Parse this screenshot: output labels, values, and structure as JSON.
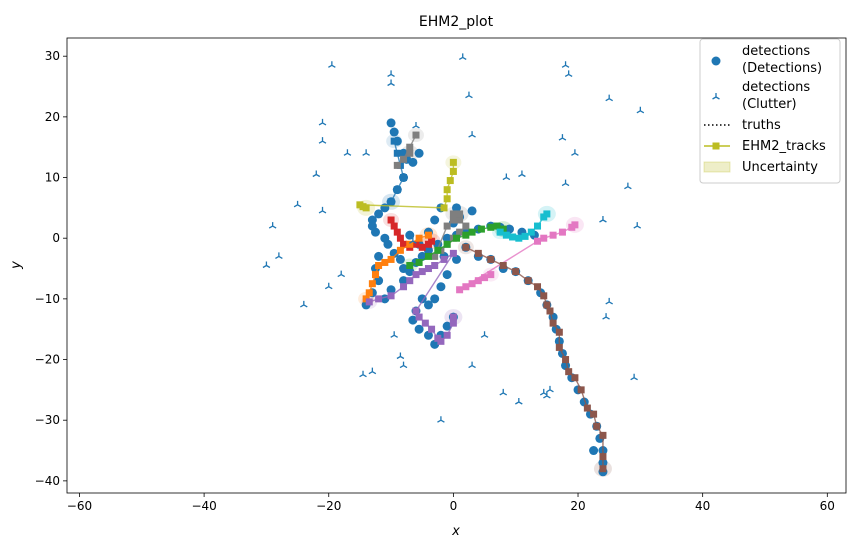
{
  "chart_data": {
    "type": "scatter",
    "title": "EHM2_plot",
    "xlabel": "x",
    "ylabel": "y",
    "xlim": [
      -62,
      63
    ],
    "ylim": [
      -42,
      33
    ],
    "x_ticks": [
      -60,
      -40,
      -20,
      0,
      20,
      40,
      60
    ],
    "y_ticks": [
      -40,
      -30,
      -20,
      -10,
      0,
      10,
      20,
      30
    ],
    "grid": false,
    "legend_position": "top-right",
    "legend": [
      {
        "label": "detections\n(Detections)",
        "marker": "circle",
        "color": "#1f77b4"
      },
      {
        "label": "detections\n(Clutter)",
        "marker": "tri",
        "color": "#1f77b4"
      },
      {
        "label": "truths",
        "marker": "dotted-line",
        "color": "#000000"
      },
      {
        "label": "EHM2_tracks",
        "marker": "square-line",
        "color": "#bcbd22"
      },
      {
        "label": "Uncertainty",
        "marker": "patch",
        "color": "#bcbd22"
      }
    ],
    "detections": [
      [
        -10,
        19
      ],
      [
        -9.5,
        17.5
      ],
      [
        -9,
        16
      ],
      [
        -8,
        14
      ],
      [
        -7.5,
        13
      ],
      [
        -6.5,
        12.5
      ],
      [
        -5.5,
        14
      ],
      [
        -8,
        10
      ],
      [
        -9,
        8
      ],
      [
        -10,
        6
      ],
      [
        -11,
        5
      ],
      [
        -12,
        4
      ],
      [
        -13,
        3
      ],
      [
        -13,
        2
      ],
      [
        -12.5,
        1
      ],
      [
        -11,
        0
      ],
      [
        -10.5,
        -1
      ],
      [
        -9.5,
        -2.5
      ],
      [
        -8.5,
        -3.5
      ],
      [
        -8,
        -5
      ],
      [
        -12,
        -3
      ],
      [
        -12.5,
        -5
      ],
      [
        -12,
        -7
      ],
      [
        -13,
        -9
      ],
      [
        -14,
        -11
      ],
      [
        -11,
        -10
      ],
      [
        -10,
        -8.5
      ],
      [
        -8,
        -7
      ],
      [
        -7,
        -5.5
      ],
      [
        -6,
        -4
      ],
      [
        -5,
        -3
      ],
      [
        -4,
        -2
      ],
      [
        -2.5,
        -1
      ],
      [
        -1,
        0
      ],
      [
        0.5,
        0.5
      ],
      [
        2,
        1
      ],
      [
        4,
        1.5
      ],
      [
        6,
        2
      ],
      [
        7.5,
        1.8
      ],
      [
        9,
        1.5
      ],
      [
        11,
        1
      ],
      [
        13,
        0.5
      ],
      [
        0,
        2.5
      ],
      [
        1,
        3.5
      ],
      [
        3,
        4.5
      ],
      [
        2,
        -1.5
      ],
      [
        4,
        -3
      ],
      [
        6,
        -3.5
      ],
      [
        8,
        -5
      ],
      [
        10,
        -5.5
      ],
      [
        12,
        -7
      ],
      [
        14,
        -9
      ],
      [
        15,
        -11
      ],
      [
        16,
        -13
      ],
      [
        16.5,
        -15
      ],
      [
        17,
        -17
      ],
      [
        17.5,
        -19
      ],
      [
        18,
        -21
      ],
      [
        19,
        -23
      ],
      [
        20,
        -25
      ],
      [
        21,
        -27
      ],
      [
        22,
        -29
      ],
      [
        23,
        -31
      ],
      [
        23.5,
        -33
      ],
      [
        24,
        -35
      ],
      [
        24,
        -37
      ],
      [
        24,
        -38.5
      ],
      [
        22.5,
        -35
      ],
      [
        -5,
        -10
      ],
      [
        -6,
        -12
      ],
      [
        -6.5,
        -13.5
      ],
      [
        -5.5,
        -15
      ],
      [
        -4,
        -16
      ],
      [
        -3,
        -17.5
      ],
      [
        -2,
        -16
      ],
      [
        -1,
        -14.5
      ],
      [
        0,
        -13
      ],
      [
        -3,
        -10
      ],
      [
        -2,
        -8
      ],
      [
        -1,
        -6
      ],
      [
        -4,
        -11
      ],
      [
        -5.5,
        -1
      ],
      [
        -7,
        0.5
      ],
      [
        -4,
        1
      ],
      [
        -3,
        3
      ],
      [
        -2,
        5
      ],
      [
        0.5,
        5
      ],
      [
        -1.5,
        -3
      ],
      [
        0.5,
        -3.5
      ]
    ],
    "clutter": [
      [
        -19.5,
        28.5
      ],
      [
        1.5,
        29.8
      ],
      [
        -10,
        27
      ],
      [
        18,
        28.5
      ],
      [
        18.5,
        27
      ],
      [
        -10,
        25.5
      ],
      [
        2.5,
        23.5
      ],
      [
        25,
        23
      ],
      [
        30,
        21
      ],
      [
        -21,
        19
      ],
      [
        -6,
        18.5
      ],
      [
        3,
        17
      ],
      [
        17.5,
        16.5
      ],
      [
        -21,
        16
      ],
      [
        -17,
        14
      ],
      [
        -14,
        14
      ],
      [
        19.5,
        14
      ],
      [
        -22,
        10.5
      ],
      [
        8.5,
        10
      ],
      [
        11,
        10.5
      ],
      [
        18,
        9
      ],
      [
        28,
        8.5
      ],
      [
        -25,
        5.5
      ],
      [
        -21,
        4.5
      ],
      [
        -29,
        2
      ],
      [
        24,
        3
      ],
      [
        29.5,
        2
      ],
      [
        -6.5,
        -0.5
      ],
      [
        -28,
        -3
      ],
      [
        -30,
        -4.5
      ],
      [
        -20,
        -8
      ],
      [
        -18,
        -6
      ],
      [
        -24,
        -11
      ],
      [
        25,
        -10.5
      ],
      [
        24.5,
        -13
      ],
      [
        -9.5,
        -16
      ],
      [
        5,
        -16
      ],
      [
        -8.5,
        -19.5
      ],
      [
        -8,
        -21
      ],
      [
        3,
        -21
      ],
      [
        -14.5,
        -22.5
      ],
      [
        -13,
        -22
      ],
      [
        29,
        -23
      ],
      [
        8,
        -25.5
      ],
      [
        14.5,
        -25.5
      ],
      [
        15.5,
        -25
      ],
      [
        10.5,
        -27
      ],
      [
        15,
        -26
      ],
      [
        -2,
        -30
      ]
    ],
    "tracks": [
      {
        "color": "#1f77b4",
        "points": [
          [
            -9.5,
            16
          ],
          [
            -9,
            14
          ],
          [
            -8.5,
            12
          ],
          [
            -8,
            10
          ],
          [
            -9,
            8
          ],
          [
            -10,
            6
          ]
        ]
      },
      {
        "color": "#7f7f7f",
        "points": [
          [
            -6,
            17
          ],
          [
            -7,
            15
          ],
          [
            -8,
            13
          ],
          [
            -9,
            12
          ],
          [
            -7,
            14
          ]
        ]
      },
      {
        "color": "#7f7f7f",
        "points": [
          [
            0,
            4
          ],
          [
            1,
            3
          ],
          [
            2,
            2
          ],
          [
            1,
            1
          ],
          [
            0,
            0
          ],
          [
            -1,
            -1
          ],
          [
            -2,
            -2
          ],
          [
            -3,
            -3
          ],
          [
            -1,
            2
          ],
          [
            0,
            3
          ],
          [
            1,
            4
          ]
        ]
      },
      {
        "color": "#bcbd22",
        "points": [
          [
            0,
            12.5
          ],
          [
            0,
            11
          ],
          [
            -0.5,
            9.5
          ],
          [
            -1,
            8
          ],
          [
            -1,
            6.5
          ],
          [
            -1.5,
            5
          ],
          [
            -15,
            5.5
          ],
          [
            -14.5,
            5.2
          ],
          [
            -14,
            5
          ]
        ]
      },
      {
        "color": "#d62728",
        "points": [
          [
            -10,
            3
          ],
          [
            -9.5,
            2
          ],
          [
            -9,
            1
          ],
          [
            -8.5,
            0
          ],
          [
            -8,
            -1
          ],
          [
            -7,
            -1.5
          ],
          [
            -6,
            -1
          ],
          [
            -5,
            -1.5
          ],
          [
            -4,
            -1
          ],
          [
            -3.5,
            -0.5
          ]
        ]
      },
      {
        "color": "#ff7f0e",
        "points": [
          [
            -14,
            -10
          ],
          [
            -13.5,
            -9
          ],
          [
            -13,
            -7.5
          ],
          [
            -12.5,
            -6
          ],
          [
            -12,
            -4.5
          ],
          [
            -11,
            -4
          ],
          [
            -10,
            -3.5
          ],
          [
            -8.5,
            -2
          ],
          [
            -7,
            -1
          ],
          [
            -5.5,
            0
          ],
          [
            -4,
            0.5
          ]
        ]
      },
      {
        "color": "#2ca02c",
        "points": [
          [
            -7,
            -4.5
          ],
          [
            -5.5,
            -4
          ],
          [
            -4,
            -3
          ],
          [
            -2.5,
            -2
          ],
          [
            -1,
            -1
          ],
          [
            0.5,
            0
          ],
          [
            2,
            0.5
          ],
          [
            3,
            1
          ],
          [
            4.5,
            1.5
          ],
          [
            6,
            1.8
          ],
          [
            7,
            2
          ],
          [
            8,
            1.5
          ]
        ]
      },
      {
        "color": "#17becf",
        "points": [
          [
            7.5,
            1
          ],
          [
            8.5,
            0.5
          ],
          [
            9.5,
            0.2
          ],
          [
            10.5,
            0
          ],
          [
            11.5,
            0.3
          ],
          [
            12.5,
            1
          ],
          [
            13.5,
            2
          ],
          [
            14.5,
            3.5
          ],
          [
            15,
            4
          ]
        ]
      },
      {
        "color": "#e377c2",
        "points": [
          [
            6,
            -6
          ],
          [
            5,
            -6.5
          ],
          [
            4,
            -7
          ],
          [
            3,
            -7.5
          ],
          [
            2,
            -8
          ],
          [
            1,
            -8.5
          ],
          [
            13.5,
            -0.5
          ],
          [
            14.5,
            0
          ],
          [
            16,
            0.5
          ],
          [
            17.5,
            1
          ],
          [
            19,
            1.8
          ],
          [
            19.5,
            2.2
          ]
        ]
      },
      {
        "color": "#9467bd",
        "points": [
          [
            -13.5,
            -10.5
          ],
          [
            -12,
            -10
          ],
          [
            -10,
            -9.5
          ],
          [
            -8,
            -8
          ],
          [
            -7,
            -7
          ],
          [
            -6,
            -6
          ],
          [
            -5,
            -5.5
          ],
          [
            -4,
            -5
          ],
          [
            -3,
            -4.5
          ],
          [
            -1.5,
            -3.5
          ],
          [
            0,
            -2.5
          ],
          [
            -6,
            -12
          ],
          [
            -5.5,
            -13
          ],
          [
            -4.5,
            -14
          ],
          [
            -3.5,
            -15
          ],
          [
            -2.5,
            -16.5
          ],
          [
            -2,
            -17
          ],
          [
            -1,
            -16
          ],
          [
            0,
            -14
          ],
          [
            0,
            -13
          ]
        ]
      },
      {
        "color": "#8c564b",
        "points": [
          [
            2,
            -1.5
          ],
          [
            4,
            -2.5
          ],
          [
            6,
            -3.5
          ],
          [
            8,
            -4.5
          ],
          [
            10,
            -5.5
          ],
          [
            12,
            -7
          ],
          [
            13.5,
            -8
          ],
          [
            14.5,
            -9.5
          ],
          [
            15,
            -11
          ],
          [
            15.5,
            -12
          ],
          [
            16,
            -14
          ],
          [
            17,
            -15.5
          ],
          [
            17,
            -18
          ],
          [
            18,
            -20
          ],
          [
            18.5,
            -22
          ],
          [
            19.5,
            -23
          ],
          [
            20.5,
            -25
          ],
          [
            21.5,
            -28
          ],
          [
            22.5,
            -29
          ],
          [
            23,
            -31
          ],
          [
            24,
            -32.5
          ],
          [
            24,
            -36
          ],
          [
            24,
            -38
          ]
        ]
      }
    ]
  }
}
